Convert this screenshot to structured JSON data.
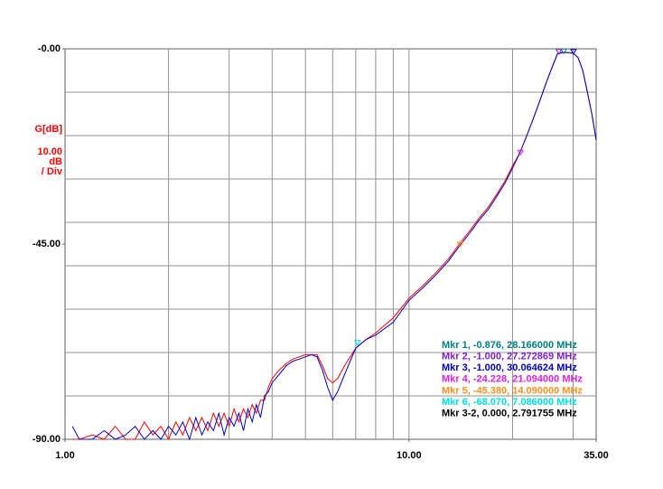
{
  "chart_data": {
    "type": "line",
    "x_scale": "log",
    "xlim": [
      1,
      35
    ],
    "xticks": [
      {
        "value": 1,
        "label": "1.00"
      },
      {
        "value": 10,
        "label": "10.00"
      },
      {
        "value": 35,
        "label": "35.00"
      }
    ],
    "xgrid": [
      2,
      3,
      4,
      5,
      6,
      7,
      8,
      9,
      10,
      20,
      30
    ],
    "ylim": [
      -90,
      0
    ],
    "yticks": [
      {
        "value": 0,
        "label": "-0.00"
      },
      {
        "value": -45,
        "label": "-45.00"
      },
      {
        "value": -90,
        "label": "-90.00"
      }
    ],
    "ygrid": [
      -10,
      -20,
      -30,
      -40,
      -50,
      -60,
      -70,
      -80
    ],
    "y_label_lines": [
      "G[dB]",
      "10.00",
      "dB",
      "/ Div"
    ],
    "y_label_color": "#ff0000",
    "x": [
      1.05,
      1.1,
      1.2,
      1.3,
      1.4,
      1.5,
      1.6,
      1.7,
      1.8,
      1.9,
      2.0,
      2.1,
      2.2,
      2.3,
      2.4,
      2.5,
      2.6,
      2.7,
      2.8,
      2.9,
      3.0,
      3.1,
      3.2,
      3.3,
      3.4,
      3.5,
      3.6,
      3.7,
      3.8,
      3.9,
      4.0,
      4.2,
      4.4,
      4.6,
      4.8,
      5.0,
      5.2,
      5.4,
      5.6,
      5.8,
      6.0,
      6.2,
      6.5,
      7,
      7.5,
      8,
      9,
      10,
      11,
      12,
      13,
      14,
      15,
      16,
      17,
      18,
      19,
      20,
      21,
      22,
      23,
      24,
      25,
      26,
      27,
      28,
      29,
      30,
      31,
      32,
      33,
      34,
      35
    ],
    "series": [
      {
        "color": "#ff0000",
        "values": [
          -90,
          -90,
          -89,
          -90,
          -87,
          -90,
          -90,
          -86,
          -89,
          -87,
          -90,
          -86,
          -89,
          -85,
          -88,
          -85,
          -88,
          -84,
          -87,
          -84,
          -87,
          -83,
          -86,
          -83,
          -85,
          -82,
          -84,
          -81,
          -81,
          -78,
          -76,
          -74,
          -72.5,
          -71.5,
          -71,
          -70.5,
          -70.5,
          -70.5,
          -73,
          -76,
          -77,
          -76,
          -73,
          -69,
          -67,
          -65.5,
          -62,
          -57.5,
          -54.5,
          -51.5,
          -48.5,
          -45,
          -42,
          -39,
          -36.5,
          -33.5,
          -30.5,
          -27,
          -24,
          -20,
          -16,
          -12,
          -8,
          -4.5,
          -1.1,
          -0.8,
          -0.9,
          -1,
          -2,
          -5,
          -10,
          -15,
          -21
        ]
      },
      {
        "color": "#0000cc",
        "values": [
          -87,
          -90,
          -90,
          -88,
          -90,
          -89,
          -87,
          -90,
          -88,
          -90,
          -87,
          -89,
          -86,
          -90,
          -85,
          -89,
          -86,
          -88,
          -84,
          -89,
          -85,
          -87,
          -84,
          -88,
          -83,
          -86,
          -82,
          -85,
          -80,
          -79,
          -77,
          -75,
          -73,
          -72,
          -71.5,
          -71,
          -70.5,
          -71,
          -74,
          -78,
          -81,
          -79,
          -75,
          -69,
          -67,
          -66,
          -63,
          -58,
          -55,
          -52,
          -49,
          -45.5,
          -42.5,
          -39.5,
          -37,
          -34,
          -31,
          -27.5,
          -24,
          -20,
          -16,
          -12,
          -8,
          -4.5,
          -1.2,
          -0.9,
          -0.9,
          -1,
          -2,
          -5,
          -10,
          -15,
          -21
        ]
      }
    ],
    "markers": [
      {
        "label": "Mkr 1, -0.876, 28.166000 MHz",
        "color": "#008080",
        "x": 28.166,
        "y": -0.876
      },
      {
        "label": "Mkr 2, -1.000, 27.272869 MHz",
        "color": "#8020d0",
        "x": 27.272869,
        "y": -1
      },
      {
        "label": "Mkr 3, -1.000, 30.064624 MHz",
        "color": "#0000c0",
        "x": 30.064624,
        "y": -1
      },
      {
        "label": "Mkr 4, -24.228, 21.094000 MHz",
        "color": "#e020e0",
        "x": 21.094,
        "y": -24.228
      },
      {
        "label": "Mkr 5, -45.380, 14.090000 MHz",
        "color": "#ff9020",
        "x": 14.09,
        "y": -45.38
      },
      {
        "label": "Mkr 6, -68.070, 7.086000 MHz",
        "color": "#00e0e0",
        "x": 7.086,
        "y": -68.07
      },
      {
        "label": "Mkr 3-2, 0.000, 2.791755 MHz",
        "color": "#000000"
      }
    ]
  }
}
